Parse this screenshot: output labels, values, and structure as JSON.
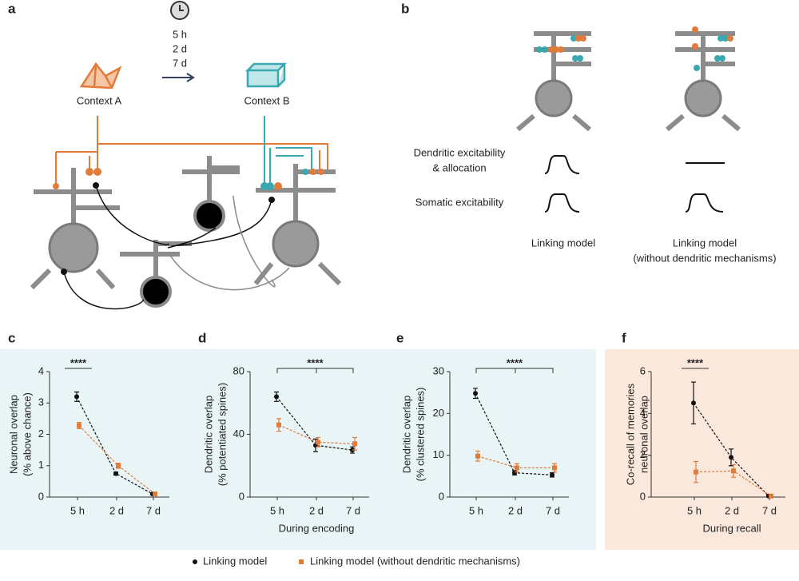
{
  "panel_labels": [
    "a",
    "b",
    "c",
    "d",
    "e",
    "f"
  ],
  "diagram_a": {
    "intervals": [
      "5 h",
      "2 d",
      "7 d"
    ],
    "context_a": "Context A",
    "context_b": "Context B"
  },
  "diagram_b": {
    "row_labels": [
      [
        "Dendritic excitability",
        "& allocation"
      ],
      [
        "Somatic excitability"
      ]
    ],
    "models": [
      [
        "Linking model"
      ],
      [
        "Linking model",
        "(without dendritic mechanisms)"
      ]
    ]
  },
  "chart_data": [
    {
      "type": "line",
      "categories": [
        "5 h",
        "2 d",
        "7 d"
      ],
      "ylabel": [
        "Neuronal overlap",
        "(% above chance)"
      ],
      "ylim": [
        0,
        4
      ],
      "yticks": [
        0,
        1,
        2,
        3,
        4
      ],
      "annotation": "****",
      "series": [
        {
          "name": "Linking model",
          "color": "#111111",
          "values": [
            3.2,
            0.75,
            0.1
          ],
          "errors": [
            0.15,
            0.05,
            0.02
          ]
        },
        {
          "name": "Linking model (without dendritic mechanisms)",
          "color": "#e07b39",
          "values": [
            2.28,
            1.0,
            0.1
          ],
          "errors": [
            0.1,
            0.08,
            0.02
          ]
        }
      ]
    },
    {
      "type": "line",
      "categories": [
        "5 h",
        "2 d",
        "7 d"
      ],
      "ylabel": [
        "Dendritic overlap",
        "(% potentiated spines)"
      ],
      "xlabel": "During encoding",
      "ylim": [
        0,
        80
      ],
      "yticks": [
        0,
        40,
        80
      ],
      "annotation": "****",
      "series": [
        {
          "name": "Linking model",
          "color": "#111111",
          "values": [
            64,
            33,
            30
          ],
          "errors": [
            3,
            4,
            2
          ]
        },
        {
          "name": "Linking model (without dendritic mechanisms)",
          "color": "#e07b39",
          "values": [
            46,
            35,
            34
          ],
          "errors": [
            4,
            3,
            4
          ]
        }
      ]
    },
    {
      "type": "line",
      "categories": [
        "5 h",
        "2 d",
        "7 d"
      ],
      "ylabel": [
        "Dendritic overlap",
        "(% clustered spines)"
      ],
      "ylim": [
        0,
        30
      ],
      "yticks": [
        0,
        10,
        20,
        30
      ],
      "annotation": "****",
      "series": [
        {
          "name": "Linking model",
          "color": "#111111",
          "values": [
            24.8,
            5.8,
            5.3
          ],
          "errors": [
            1.2,
            0.5,
            0.5
          ]
        },
        {
          "name": "Linking model (without dendritic mechanisms)",
          "color": "#e07b39",
          "values": [
            9.8,
            7.0,
            7.0
          ],
          "errors": [
            1.2,
            1,
            1
          ]
        }
      ]
    },
    {
      "type": "line",
      "categories": [
        "5 h",
        "2 d",
        "7 d"
      ],
      "ylabel": [
        "Co-recall of memories",
        "neuronal overlap"
      ],
      "xlabel": "During recall",
      "ylim": [
        0,
        6
      ],
      "yticks": [
        0,
        2,
        4,
        6
      ],
      "annotation": "****",
      "series": [
        {
          "name": "Linking model",
          "color": "#111111",
          "values": [
            4.5,
            1.9,
            0.05
          ],
          "errors": [
            1.0,
            0.4,
            0.05
          ]
        },
        {
          "name": "Linking model (without dendritic mechanisms)",
          "color": "#e07b39",
          "values": [
            1.2,
            1.25,
            0.05
          ],
          "errors": [
            0.5,
            0.3,
            0.05
          ]
        }
      ]
    }
  ]
}
